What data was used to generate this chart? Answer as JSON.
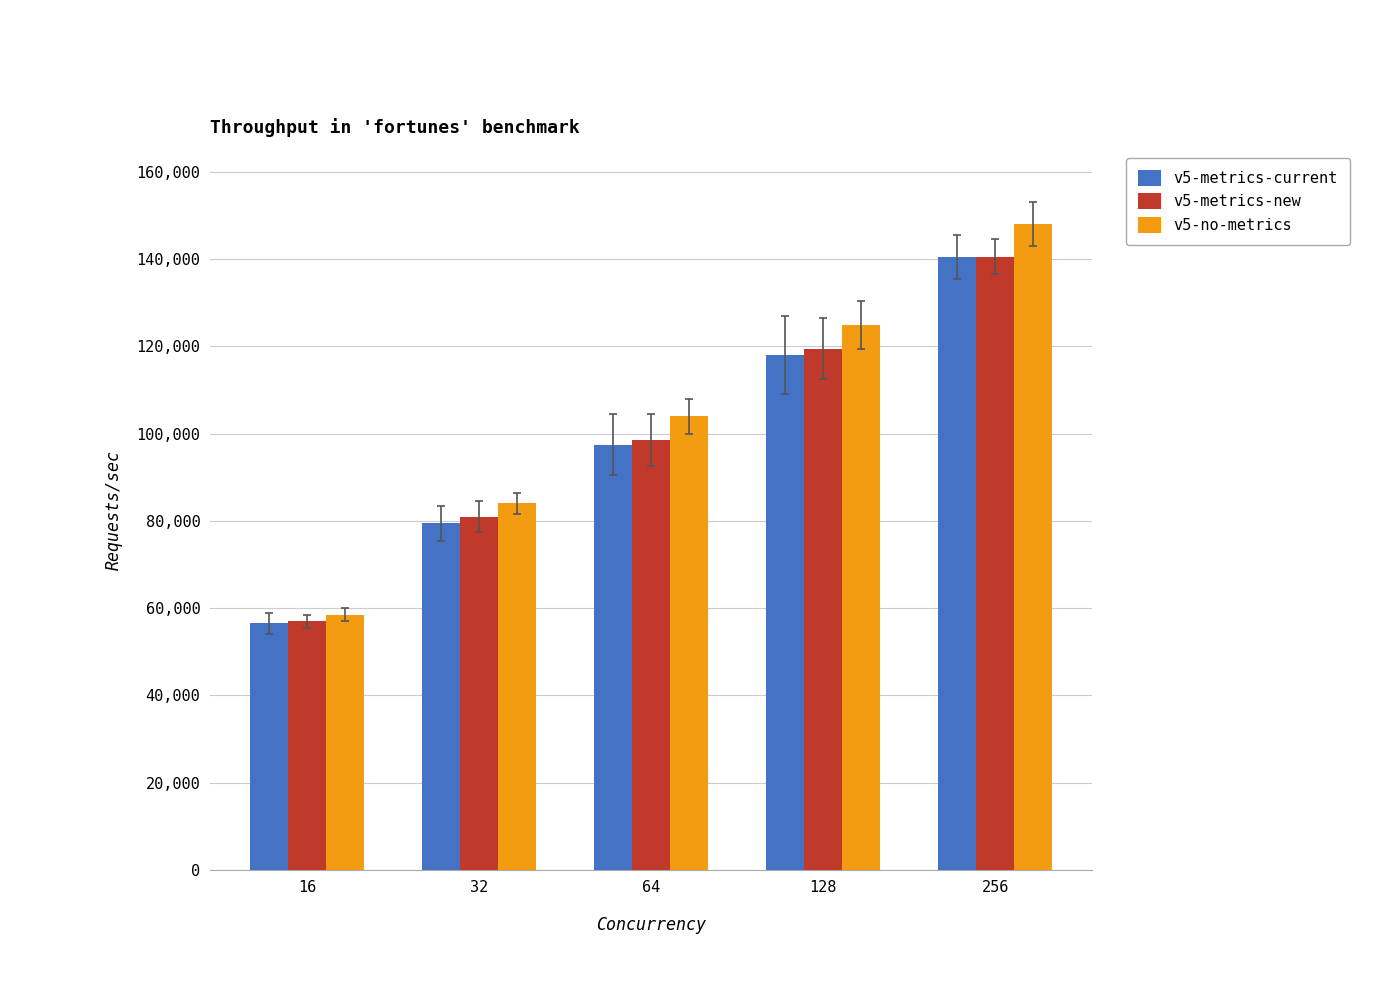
{
  "title": "Throughput in 'fortunes' benchmark",
  "xlabel": "Concurrency",
  "ylabel": "Requests/sec",
  "categories": [
    16,
    32,
    64,
    128,
    256
  ],
  "series": [
    {
      "label": "v5-metrics-current",
      "color": "#4472C4",
      "values": [
        56500,
        79500,
        97500,
        118000,
        140500
      ],
      "errors": [
        2500,
        4000,
        7000,
        9000,
        5000
      ]
    },
    {
      "label": "v5-metrics-new",
      "color": "#C0392B",
      "values": [
        57000,
        81000,
        98500,
        119500,
        140500
      ],
      "errors": [
        1500,
        3500,
        6000,
        7000,
        4000
      ]
    },
    {
      "label": "v5-no-metrics",
      "color": "#F39C12",
      "values": [
        58500,
        84000,
        104000,
        125000,
        148000
      ],
      "errors": [
        1500,
        2500,
        4000,
        5500,
        5000
      ]
    }
  ],
  "ylim": [
    0,
    165000
  ],
  "yticks": [
    0,
    20000,
    40000,
    60000,
    80000,
    100000,
    120000,
    140000,
    160000
  ],
  "bar_width": 0.22,
  "background_color": "#ffffff",
  "grid_color": "#cccccc",
  "title_fontsize": 13,
  "label_fontsize": 12,
  "tick_fontsize": 11,
  "legend_fontsize": 11
}
